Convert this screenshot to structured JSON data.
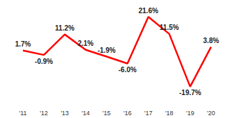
{
  "chart_data": {
    "type": "line",
    "categories": [
      "'11",
      "'12",
      "'13",
      "'14",
      "'15",
      "'16",
      "'17",
      "'18",
      "'19",
      "'20"
    ],
    "values": [
      1.7,
      -0.9,
      11.2,
      2.1,
      -1.9,
      -6.0,
      21.6,
      11.5,
      -19.7,
      3.8
    ],
    "value_labels": [
      "1.7%",
      "-0.9%",
      "11.2%",
      "2.1%",
      "-1.9%",
      "-6.0%",
      "21.6%",
      "11.5%",
      "-19.7%",
      "3.8%"
    ],
    "color": "#ff0000",
    "ylim": [
      -30,
      25
    ],
    "grid": false,
    "data_labels": true,
    "tick_labels": "x"
  }
}
